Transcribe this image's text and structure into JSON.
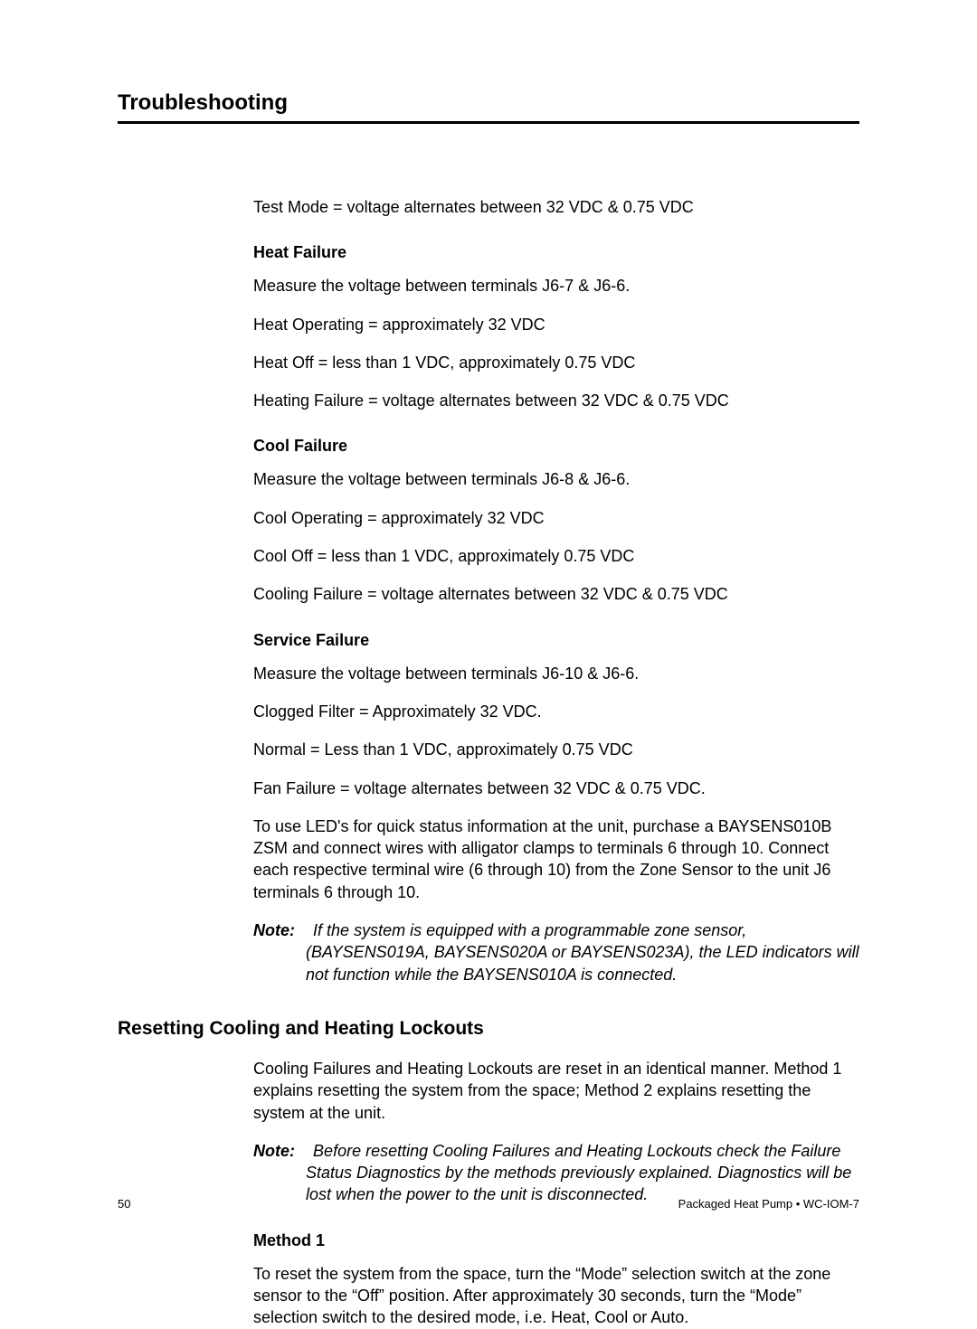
{
  "header": {
    "section_title": "Troubleshooting"
  },
  "body": {
    "test_mode": "Test Mode = voltage alternates between 32 VDC & 0.75 VDC",
    "heat_failure": {
      "heading": "Heat Failure",
      "p1": "Measure the voltage between terminals J6-7 & J6-6.",
      "p2": "Heat Operating = approximately 32 VDC",
      "p3": "Heat Off = less than 1 VDC, approximately 0.75 VDC",
      "p4": "Heating Failure = voltage alternates between 32 VDC & 0.75 VDC"
    },
    "cool_failure": {
      "heading": "Cool Failure",
      "p1": "Measure the voltage between terminals J6-8 & J6-6.",
      "p2": "Cool Operating = approximately 32 VDC",
      "p3": "Cool Off = less than 1 VDC, approximately 0.75 VDC",
      "p4": "Cooling Failure = voltage alternates between 32 VDC & 0.75 VDC"
    },
    "service_failure": {
      "heading": "Service Failure",
      "p1": "Measure the voltage between terminals J6-10 & J6-6.",
      "p2": "Clogged Filter = Approximately 32 VDC.",
      "p3": "Normal  = Less than 1 VDC, approximately 0.75 VDC",
      "p4": "Fan Failure = voltage alternates between 32 VDC & 0.75 VDC.",
      "p5": "To use LED's for quick status information at the unit, purchase a BAYSENS010B ZSM and connect wires with alligator clamps to terminals 6 through 10. Connect each respective terminal wire (6 through 10) from the Zone Sensor to the unit J6 terminals 6 through 10.",
      "note_label": "Note:",
      "note_body": "If the system is equipped with a programmable zone sensor, (BAYSENS019A, BAYSENS020A  or  BAYSENS023A), the LED indicators will not function while the BAYSENS010A is connected."
    },
    "resetting": {
      "heading": "Resetting Cooling and Heating Lockouts",
      "p1": "Cooling Failures and Heating Lockouts are reset in an identical manner. Method 1 explains resetting the system from the space; Method 2 explains resetting the system at the unit.",
      "note_label": "Note:",
      "note_body": "Before resetting Cooling Failures and Heating Lockouts check the Failure Status Diagnostics by the methods previously explained. Diagnostics will be lost when the power to the unit is disconnected.",
      "method1_heading": "Method 1",
      "method1_body": "To reset the system from the space, turn the “Mode” selection switch at the zone sensor to the “Off” position. After approximately 30 seconds, turn the “Mode” selection switch to the desired mode, i.e. Heat, Cool or Auto."
    }
  },
  "footer": {
    "page_number": "50",
    "doc_ref": "Packaged Heat Pump • WC-IOM-7"
  }
}
